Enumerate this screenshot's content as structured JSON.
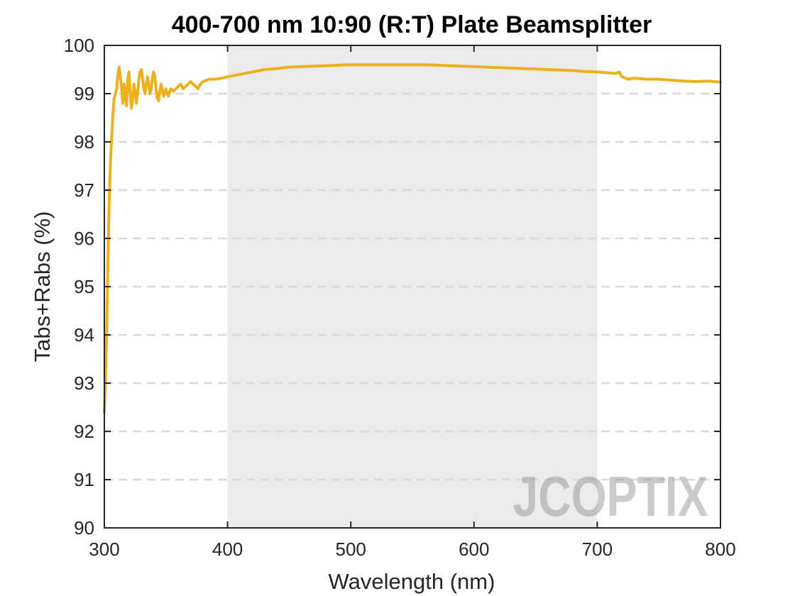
{
  "chart_data": {
    "type": "line",
    "title": "400-700 nm 10:90 (R:T) Plate Beamsplitter",
    "xlabel": "Wavelength (nm)",
    "ylabel": "Tabs+Rabs (%)",
    "xlim": [
      300,
      800
    ],
    "ylim": [
      90,
      100
    ],
    "xticks": [
      "300",
      "400",
      "500",
      "600",
      "700",
      "800"
    ],
    "yticks": [
      "90",
      "91",
      "92",
      "93",
      "94",
      "95",
      "96",
      "97",
      "98",
      "99",
      "100"
    ],
    "grid": "horizontal dashed",
    "highlight_band": [
      400,
      700
    ],
    "watermark": "JCOPTIX",
    "series": [
      {
        "color": "#EDB120",
        "x": [
          300,
          301,
          302,
          303,
          304,
          305,
          306,
          307,
          308,
          309,
          310,
          311,
          312,
          313,
          314,
          315,
          316,
          317,
          318,
          319,
          320,
          321,
          322,
          323,
          324,
          325,
          326,
          327,
          328,
          329,
          330,
          331,
          332,
          333,
          334,
          335,
          336,
          337,
          338,
          339,
          340,
          341,
          342,
          343,
          344,
          345,
          346,
          347,
          348,
          349,
          350,
          351,
          352,
          353,
          354,
          356,
          358,
          360,
          362,
          364,
          366,
          368,
          370,
          372,
          374,
          376,
          378,
          380,
          385,
          390,
          395,
          400,
          410,
          420,
          430,
          440,
          450,
          460,
          470,
          480,
          490,
          500,
          510,
          520,
          530,
          540,
          550,
          560,
          570,
          580,
          590,
          600,
          610,
          620,
          630,
          640,
          650,
          660,
          670,
          680,
          690,
          700,
          705,
          710,
          715,
          718,
          720,
          725,
          730,
          740,
          750,
          760,
          770,
          780,
          790,
          800
        ],
        "y": [
          92.4,
          93.1,
          94.2,
          95.6,
          96.8,
          97.6,
          98.1,
          98.6,
          98.9,
          99.0,
          99.1,
          99.4,
          99.55,
          99.35,
          99.1,
          98.8,
          99.2,
          99.0,
          98.75,
          99.3,
          99.45,
          99.0,
          98.7,
          98.9,
          99.2,
          99.05,
          98.8,
          99.0,
          99.3,
          99.45,
          99.5,
          99.3,
          99.1,
          99.0,
          99.2,
          99.35,
          99.2,
          99.0,
          99.1,
          99.3,
          99.45,
          99.35,
          99.1,
          98.9,
          98.85,
          99.05,
          99.2,
          99.1,
          98.95,
          99.0,
          99.1,
          99.0,
          98.95,
          99.05,
          99.1,
          99.05,
          99.1,
          99.15,
          99.2,
          99.1,
          99.15,
          99.2,
          99.25,
          99.2,
          99.15,
          99.1,
          99.2,
          99.25,
          99.3,
          99.3,
          99.32,
          99.35,
          99.4,
          99.45,
          99.5,
          99.52,
          99.55,
          99.56,
          99.57,
          99.58,
          99.59,
          99.6,
          99.6,
          99.6,
          99.6,
          99.6,
          99.6,
          99.6,
          99.59,
          99.58,
          99.57,
          99.56,
          99.55,
          99.54,
          99.53,
          99.52,
          99.51,
          99.5,
          99.49,
          99.48,
          99.46,
          99.45,
          99.44,
          99.43,
          99.42,
          99.45,
          99.35,
          99.3,
          99.32,
          99.3,
          99.3,
          99.28,
          99.26,
          99.25,
          99.26,
          99.24
        ]
      }
    ]
  }
}
